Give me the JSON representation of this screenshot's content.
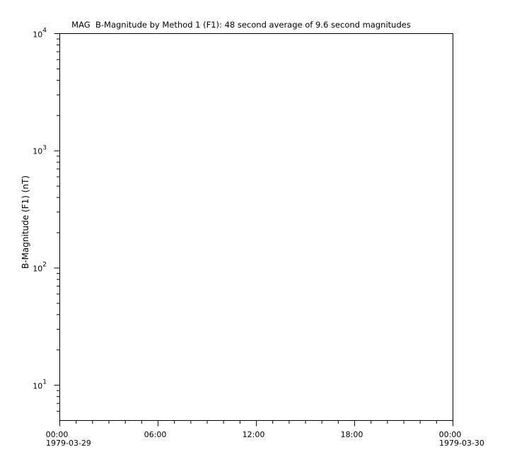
{
  "chart_data": {
    "type": "line",
    "title": "MAG  B-Magnitude by Method 1 (F1): 48 second average of 9.6 second magnitudes",
    "ylabel": "B-Magnitude (F1) (nT)",
    "xlabel": "",
    "y_scale": "log",
    "ylim": [
      5,
      10000
    ],
    "y_major_tick_exponents": [
      4,
      3,
      2,
      1
    ],
    "y_minor_mantissas": [
      2,
      3,
      4,
      5,
      6,
      7,
      8,
      9
    ],
    "x_axis": {
      "range_hours": [
        0,
        24
      ],
      "major_ticks": [
        {
          "hour": 0,
          "label": "00:00"
        },
        {
          "hour": 6,
          "label": "06:00"
        },
        {
          "hour": 12,
          "label": "12:00"
        },
        {
          "hour": 18,
          "label": "18:00"
        },
        {
          "hour": 24,
          "label": "00:00"
        }
      ],
      "minor_interval_hours": 1,
      "start_date": "1979-03-29",
      "end_date": "1979-03-30"
    },
    "series": [],
    "grid": false,
    "legend": null,
    "colors": {
      "axis": "#000000",
      "text": "#000000",
      "background": "#ffffff"
    }
  }
}
